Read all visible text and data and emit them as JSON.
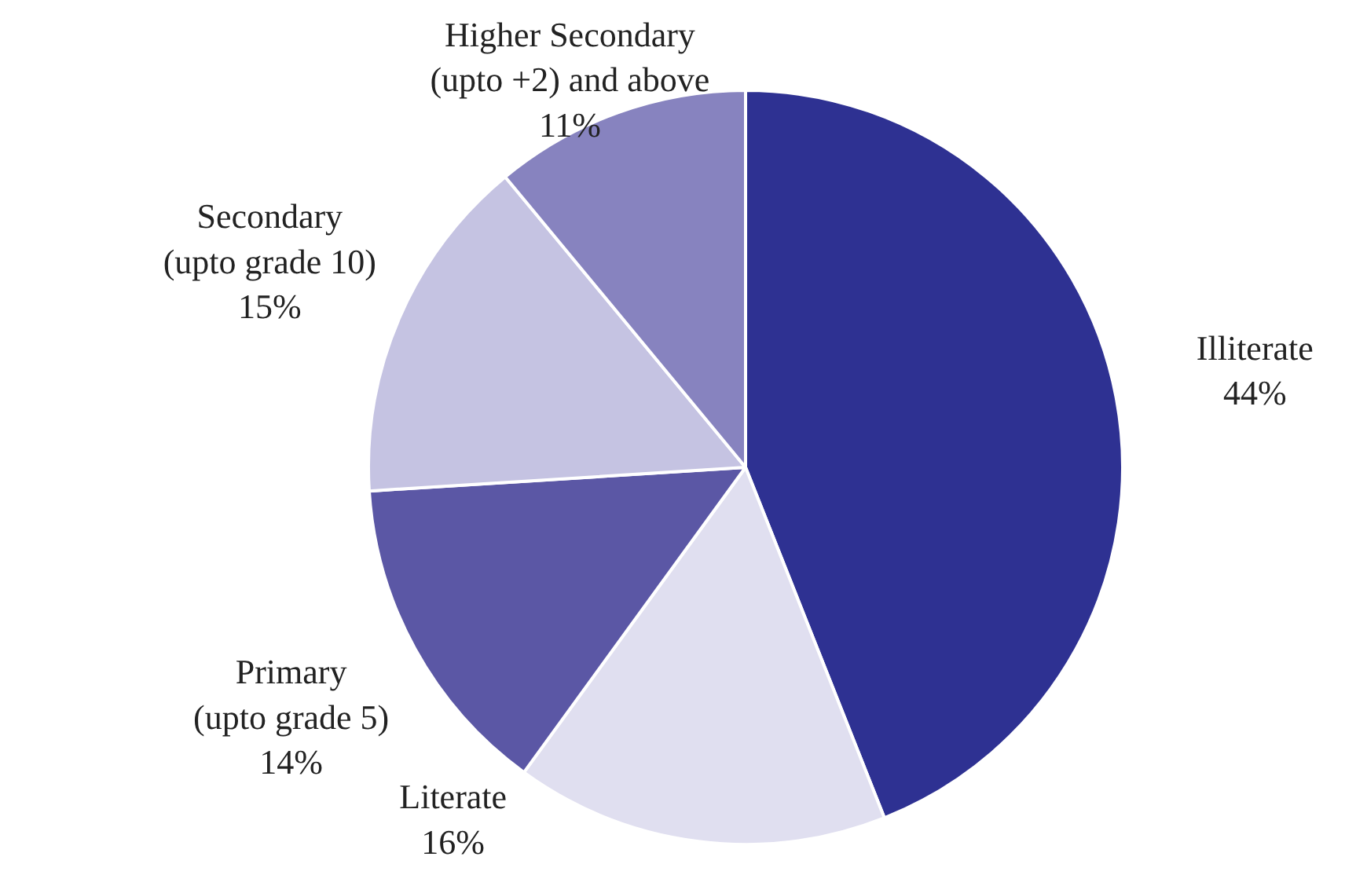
{
  "chart_data": {
    "type": "pie",
    "categories": [
      "Illiterate",
      "Literate",
      "Primary\n(upto grade 5)",
      "Secondary\n(upto grade 10)",
      "Higher Secondary\n(upto +2) and above"
    ],
    "values": [
      44,
      16,
      14,
      15,
      11
    ],
    "value_labels": [
      "44%",
      "16%",
      "14%",
      "15%",
      "11%"
    ],
    "colors": [
      "#2e3192",
      "#e0dff0",
      "#5b57a5",
      "#c5c3e2",
      "#8783bf"
    ]
  }
}
